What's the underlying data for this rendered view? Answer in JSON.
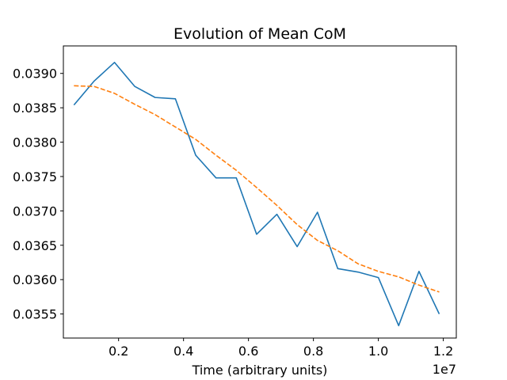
{
  "chart_data": {
    "type": "line",
    "title": "Evolution of Mean CoM",
    "xlabel": "Time (arbitrary units)",
    "ylabel": "",
    "x_offset_label": "1e7",
    "xlim": [
      0.03,
      1.24
    ],
    "ylim": [
      0.03515,
      0.0394
    ],
    "x_ticks": [
      0.2,
      0.4,
      0.6,
      0.8,
      1.0,
      1.2
    ],
    "x_tick_labels": [
      "0.2",
      "0.4",
      "0.6",
      "0.8",
      "1.0",
      "1.2"
    ],
    "y_ticks": [
      0.0355,
      0.036,
      0.0365,
      0.037,
      0.0375,
      0.038,
      0.0385,
      0.039
    ],
    "y_tick_labels": [
      "0.0355",
      "0.0360",
      "0.0365",
      "0.0370",
      "0.0375",
      "0.0380",
      "0.0385",
      "0.0390"
    ],
    "grid": false,
    "series": [
      {
        "color": "#1f77b4",
        "style": "solid",
        "x": [
          0.0625,
          0.125,
          0.1875,
          0.25,
          0.3125,
          0.375,
          0.4375,
          0.5,
          0.5625,
          0.625,
          0.6875,
          0.75,
          0.8125,
          0.875,
          0.9375,
          1.0,
          1.0625,
          1.125,
          1.1875
        ],
        "values": [
          0.03854,
          0.03889,
          0.03916,
          0.03881,
          0.03865,
          0.03863,
          0.03781,
          0.03748,
          0.03748,
          0.03666,
          0.03695,
          0.03648,
          0.03698,
          0.03616,
          0.03611,
          0.03603,
          0.03533,
          0.03612,
          0.0355
        ]
      },
      {
        "color": "#ff7f0e",
        "style": "dashed",
        "x": [
          0.0625,
          0.125,
          0.1875,
          0.25,
          0.3125,
          0.375,
          0.4375,
          0.5,
          0.5625,
          0.625,
          0.6875,
          0.75,
          0.8125,
          0.875,
          0.9375,
          1.0,
          1.0625,
          1.125,
          1.1875
        ],
        "values": [
          0.03882,
          0.03881,
          0.03871,
          0.03855,
          0.0384,
          0.03822,
          0.03804,
          0.03781,
          0.03759,
          0.03734,
          0.03708,
          0.0368,
          0.03657,
          0.03642,
          0.03623,
          0.03612,
          0.03604,
          0.03592,
          0.03582
        ]
      }
    ]
  }
}
